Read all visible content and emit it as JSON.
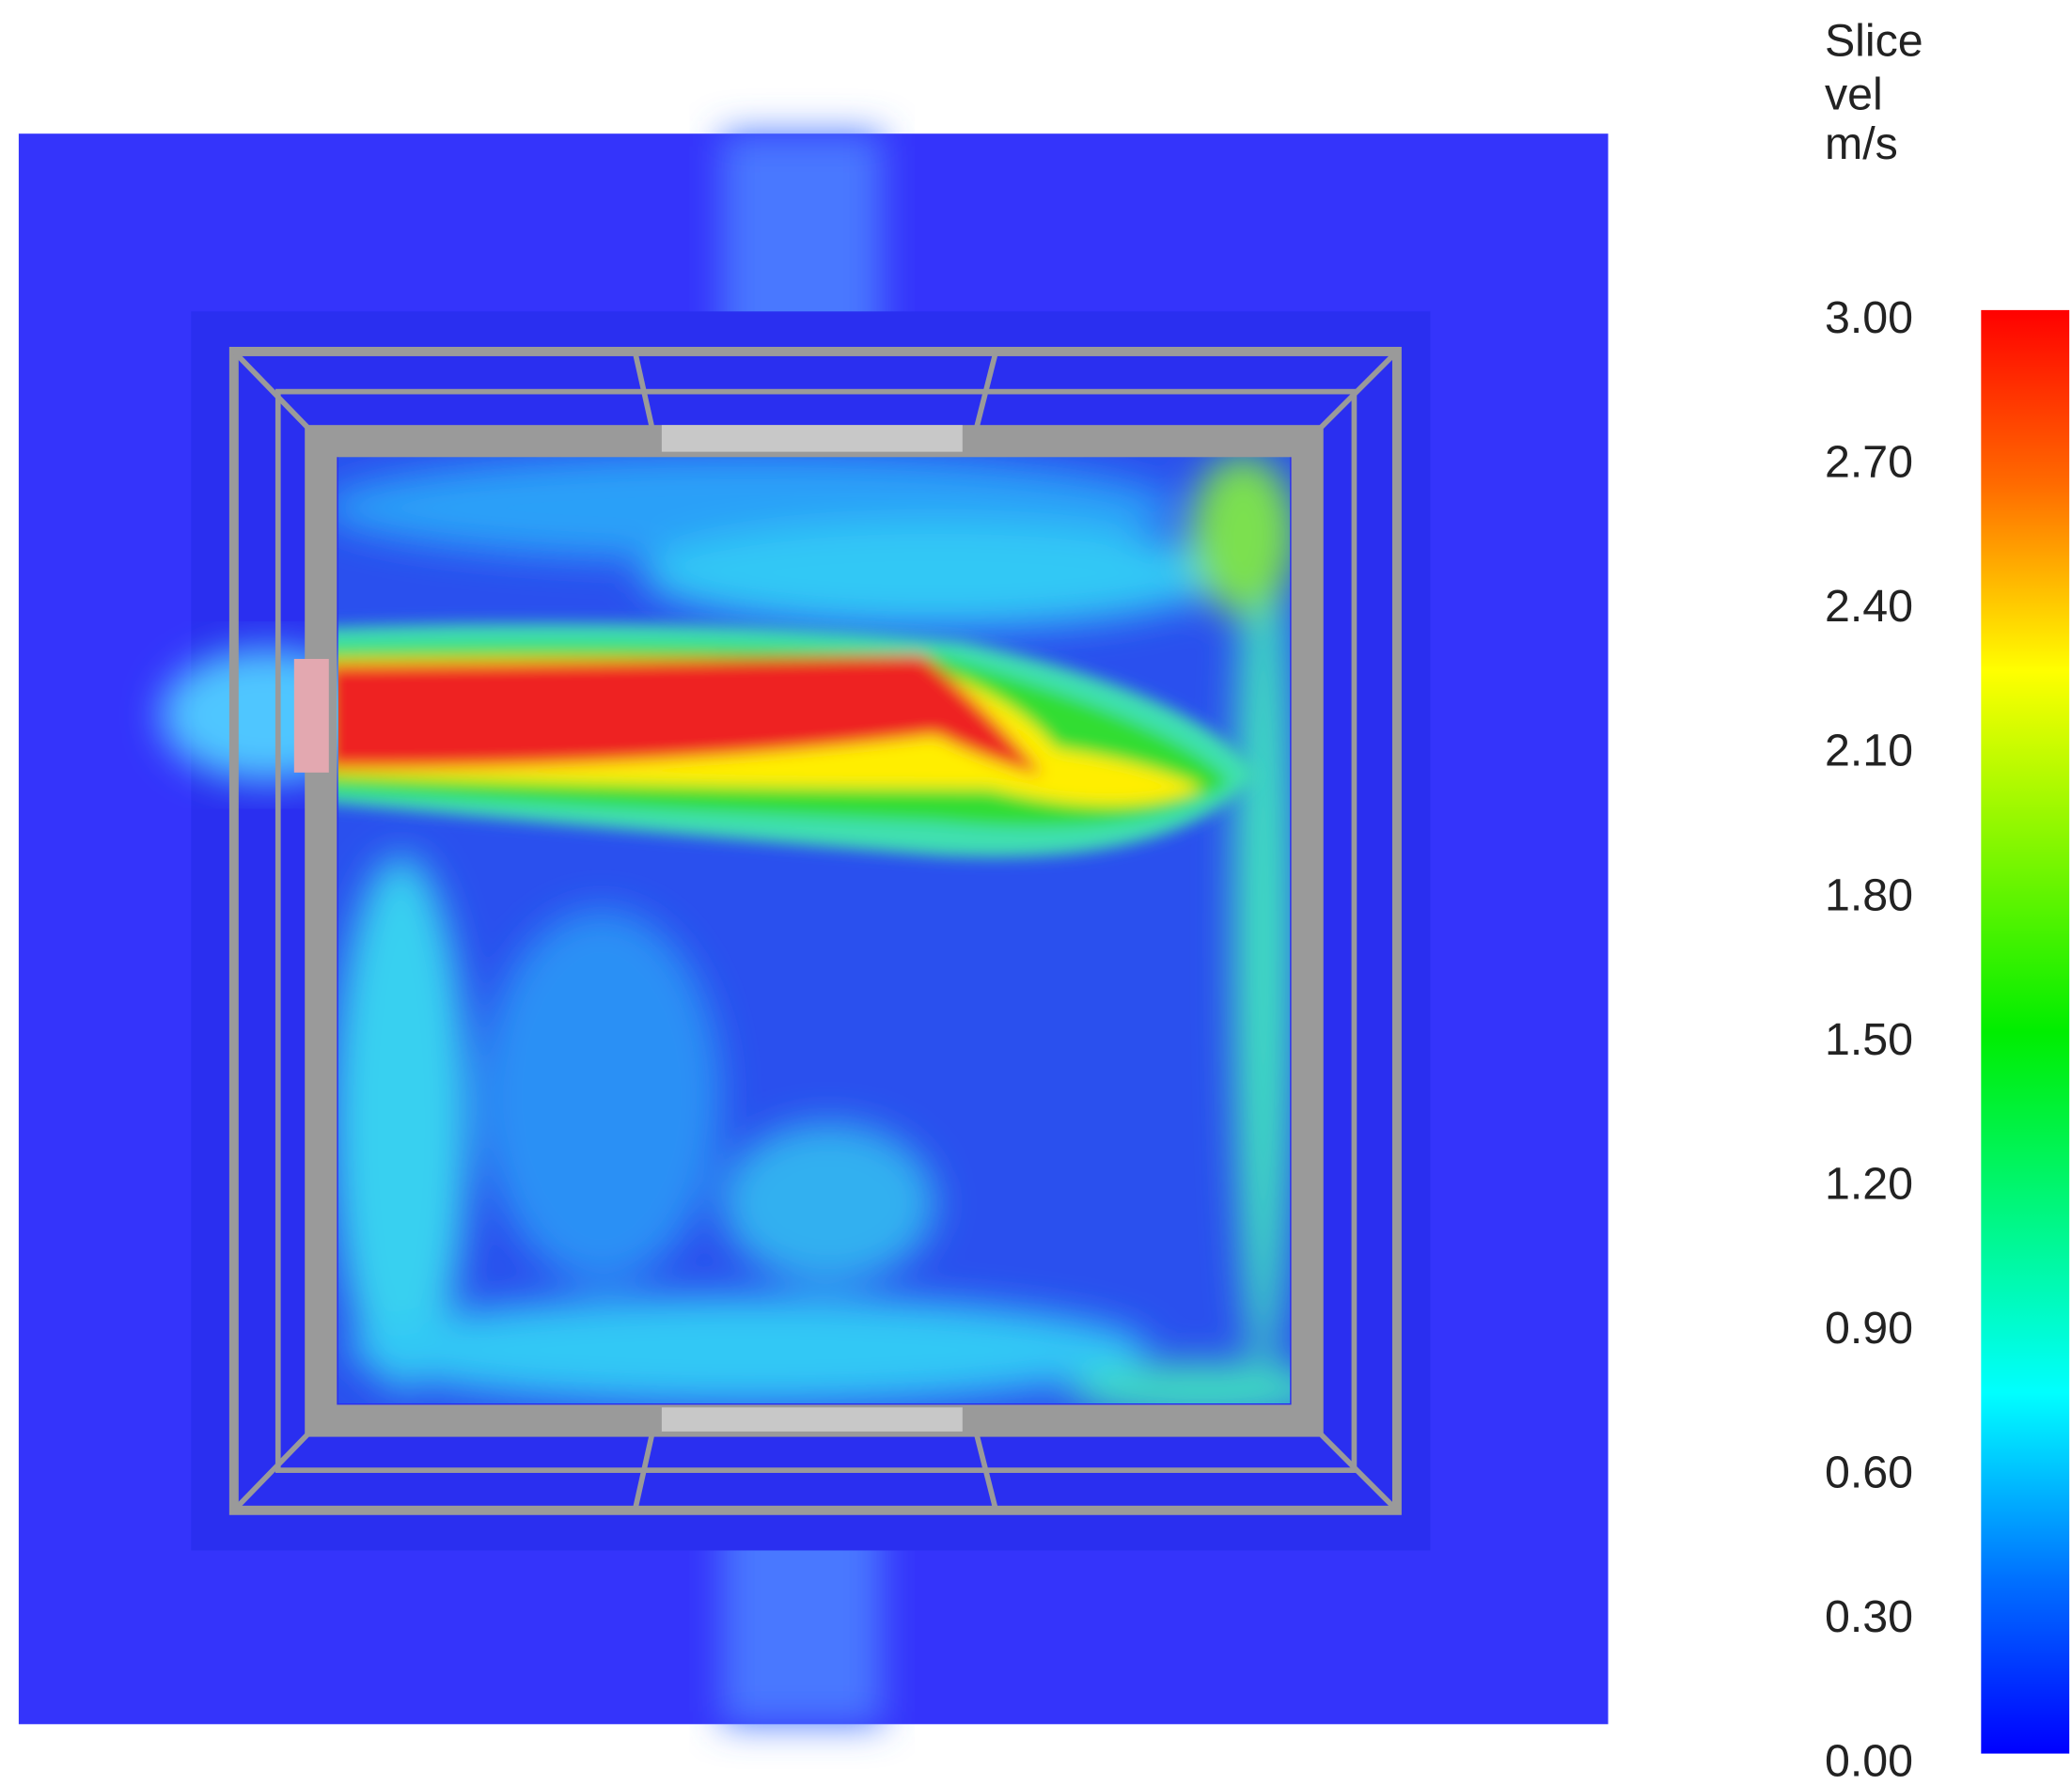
{
  "colorbar": {
    "title": [
      "Slice",
      "vel",
      "m/s"
    ],
    "ticks": [
      "3.00",
      "2.70",
      "2.40",
      "2.10",
      "1.80",
      "1.50",
      "1.20",
      "0.90",
      "0.60",
      "0.30",
      "0.00"
    ]
  }
}
